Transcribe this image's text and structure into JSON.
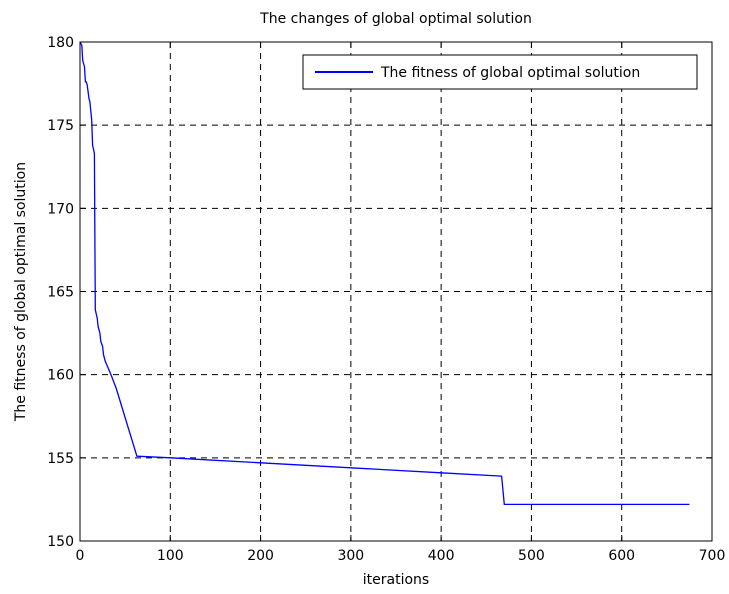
{
  "chart_data": {
    "type": "line",
    "title": "The changes of global optimal solution",
    "xlabel": "iterations",
    "ylabel": "The fitness of global optimal solution",
    "xlim": [
      0,
      700
    ],
    "ylim": [
      150,
      180
    ],
    "xticks": [
      0,
      100,
      200,
      300,
      400,
      500,
      600,
      700
    ],
    "yticks": [
      150,
      155,
      160,
      165,
      170,
      175,
      180
    ],
    "grid": true,
    "legend_position": "top-right",
    "series": [
      {
        "name": "The fitness of global optimal solution",
        "color": "#0000ff",
        "x": [
          0,
          1,
          2,
          3,
          5,
          6,
          7,
          8,
          10,
          11,
          13,
          14,
          16,
          17,
          19,
          20,
          22,
          23,
          25,
          26,
          28,
          32,
          35,
          40,
          63,
          100,
          200,
          300,
          400,
          467,
          470,
          500,
          600,
          675
        ],
        "y": [
          180,
          179.9,
          179.8,
          178.9,
          178.5,
          177.6,
          177.6,
          177.4,
          176.6,
          176.4,
          175.3,
          173.8,
          173.3,
          163.9,
          163.4,
          162.9,
          162.5,
          162.0,
          161.7,
          161.2,
          160.8,
          160.3,
          159.9,
          159.2,
          155.1,
          155.0,
          154.7,
          154.4,
          154.1,
          153.9,
          152.2,
          152.2,
          152.2,
          152.2
        ]
      }
    ]
  }
}
